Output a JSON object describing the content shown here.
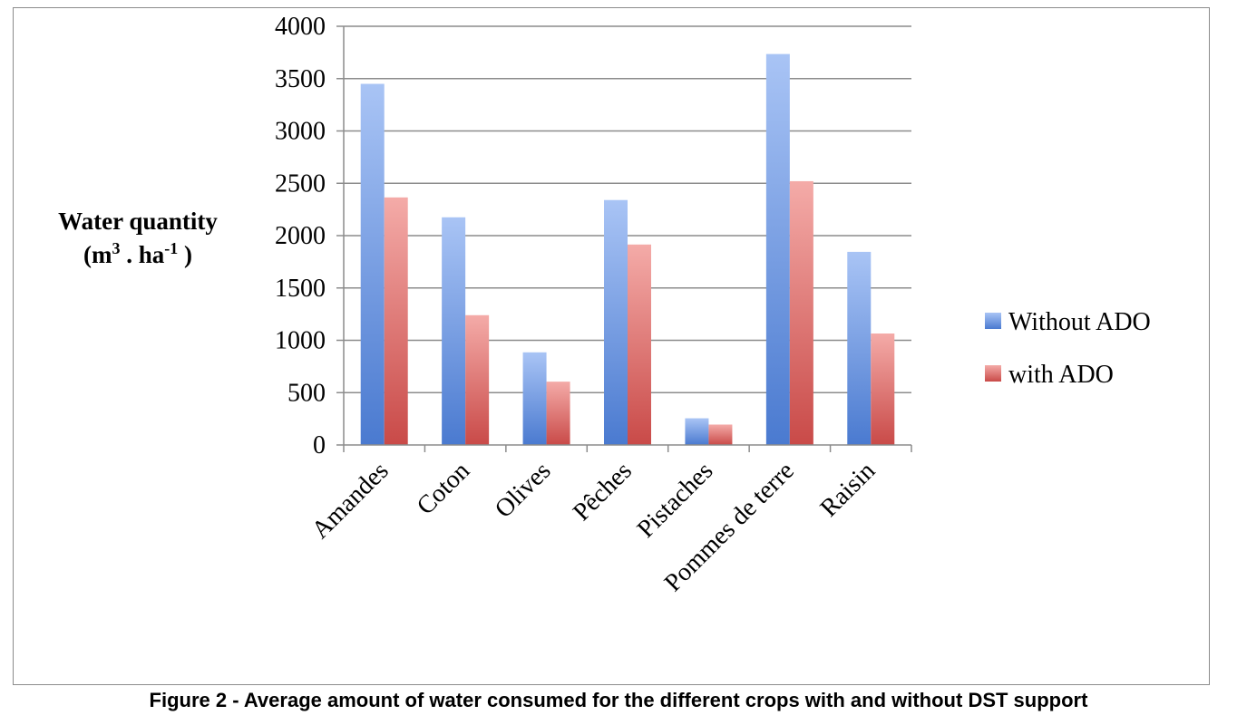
{
  "caption": "Figure 2 - Average amount of water consumed for the different crops with and without DST support",
  "colors": {
    "without_top": "#a9c4f5",
    "without_bottom": "#4a7ad0",
    "with_top": "#f4aba8",
    "with_bottom": "#c94a48",
    "grid": "#8c8c8c"
  },
  "chart_data": {
    "type": "bar",
    "title": "",
    "ylabel_line1": "Water quantity",
    "ylabel_line2_base": "(m",
    "ylabel_line2_sup1": "3",
    "ylabel_line2_mid": " . ha",
    "ylabel_line2_sup2": "-1",
    "ylabel_line2_end": " )",
    "xlabel": "",
    "ylim": [
      0,
      4000
    ],
    "yticks": [
      0,
      500,
      1000,
      1500,
      2000,
      2500,
      3000,
      3500,
      4000
    ],
    "grid": true,
    "legend_position": "right",
    "categories": [
      "Amandes",
      "Coton",
      "Olives",
      "Pêches",
      "Pistaches",
      "Pommes de terre",
      "Raisin"
    ],
    "series": [
      {
        "name": "Without ADO",
        "values": [
          3450,
          2175,
          885,
          2340,
          255,
          3735,
          1845
        ]
      },
      {
        "name": "with ADO",
        "values": [
          2365,
          1240,
          605,
          1915,
          195,
          2520,
          1065
        ]
      }
    ]
  }
}
